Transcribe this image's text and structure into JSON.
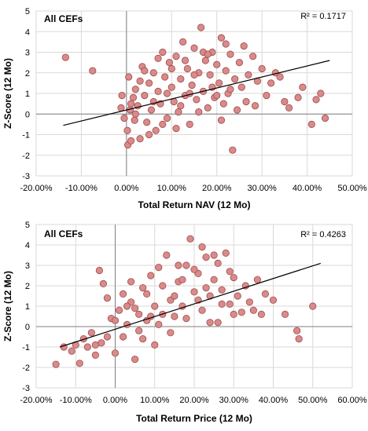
{
  "chart_data": [
    {
      "type": "scatter",
      "panel_label": "All CEFs",
      "r2_label": "R² = 0.1717",
      "xlabel": "Total Return NAV (12 Mo)",
      "ylabel": "Z-Score (12 Mo)",
      "xlim": [
        -20,
        50
      ],
      "ylim": [
        -3,
        5
      ],
      "x_ticks": [
        "-20.00%",
        "-10.00%",
        "0.00%",
        "10.00%",
        "20.00%",
        "30.00%",
        "40.00%",
        "50.00%"
      ],
      "y_ticks": [
        "-3",
        "-2",
        "-1",
        "0",
        "1",
        "2",
        "3",
        "4",
        "5"
      ],
      "grid": true,
      "marker_fill": "#d98a8a",
      "marker_edge": "#a04c4c",
      "trendline": {
        "x": [
          -14,
          45
        ],
        "y": [
          -0.55,
          2.6
        ]
      },
      "points": [
        [
          -13.5,
          2.75
        ],
        [
          -7.5,
          2.1
        ],
        [
          -1,
          0.9
        ],
        [
          -0.5,
          -0.2
        ],
        [
          -1.2,
          0.3
        ],
        [
          0.3,
          -1.5
        ],
        [
          1,
          -1.3
        ],
        [
          0.5,
          1.8
        ],
        [
          0.8,
          0.2
        ],
        [
          1.5,
          0.8
        ],
        [
          0.2,
          -0.8
        ],
        [
          1.8,
          -0.3
        ],
        [
          2,
          1.2
        ],
        [
          2.5,
          0.4
        ],
        [
          3,
          -1.2
        ],
        [
          3.5,
          2.3
        ],
        [
          4,
          0.9
        ],
        [
          4.5,
          -0.4
        ],
        [
          5,
          1.5
        ],
        [
          5.5,
          0.2
        ],
        [
          6,
          2.0
        ],
        [
          6.5,
          -0.8
        ],
        [
          7,
          1.1
        ],
        [
          7.5,
          0.5
        ],
        [
          8,
          3.0
        ],
        [
          8.5,
          1.8
        ],
        [
          9,
          -0.2
        ],
        [
          9.5,
          2.5
        ],
        [
          10,
          1.3
        ],
        [
          10.5,
          0.6
        ],
        [
          11,
          2.8
        ],
        [
          11.5,
          0.1
        ],
        [
          12,
          1.7
        ],
        [
          12.5,
          3.5
        ],
        [
          13,
          0.9
        ],
        [
          13.5,
          2.2
        ],
        [
          14,
          -0.5
        ],
        [
          14.5,
          1.4
        ],
        [
          15,
          3.2
        ],
        [
          15.5,
          0.7
        ],
        [
          16,
          2.0
        ],
        [
          16.5,
          4.2
        ],
        [
          17,
          1.1
        ],
        [
          17.5,
          2.6
        ],
        [
          18,
          0.3
        ],
        [
          18.5,
          1.9
        ],
        [
          19,
          3.0
        ],
        [
          19.5,
          0.8
        ],
        [
          20,
          2.4
        ],
        [
          20.5,
          1.5
        ],
        [
          21,
          3.7
        ],
        [
          21.5,
          0.5
        ],
        [
          22,
          2.1
        ],
        [
          22.5,
          1.0
        ],
        [
          23,
          2.9
        ],
        [
          23.5,
          -1.75
        ],
        [
          24,
          1.7
        ],
        [
          24.5,
          0.2
        ],
        [
          25,
          2.5
        ],
        [
          25.5,
          1.3
        ],
        [
          26,
          3.3
        ],
        [
          26.5,
          0.6
        ],
        [
          27,
          1.9
        ],
        [
          28,
          2.8
        ],
        [
          28.5,
          0.4
        ],
        [
          29,
          1.6
        ],
        [
          30,
          2.2
        ],
        [
          31,
          0.9
        ],
        [
          32,
          1.5
        ],
        [
          33,
          2.0
        ],
        [
          34,
          1.8
        ],
        [
          35,
          0.6
        ],
        [
          36,
          0.3
        ],
        [
          38,
          0.8
        ],
        [
          39,
          1.3
        ],
        [
          41,
          -0.5
        ],
        [
          42,
          0.7
        ],
        [
          43,
          1.0
        ],
        [
          44,
          -0.2
        ],
        [
          3,
          1.6
        ],
        [
          5,
          -1.0
        ],
        [
          7,
          2.7
        ],
        [
          9,
          1.0
        ],
        [
          11,
          -0.7
        ],
        [
          13,
          2.6
        ],
        [
          15,
          1.9
        ],
        [
          17,
          3.0
        ],
        [
          19,
          1.3
        ],
        [
          21,
          -0.3
        ],
        [
          23,
          1.2
        ],
        [
          10,
          2.2
        ],
        [
          12,
          0.4
        ],
        [
          14,
          1.0
        ],
        [
          16,
          0.1
        ],
        [
          18,
          2.9
        ],
        [
          20,
          0.9
        ],
        [
          22,
          3.4
        ],
        [
          6,
          0.6
        ],
        [
          8,
          -0.5
        ],
        [
          2,
          0.0
        ],
        [
          4,
          2.1
        ],
        [
          1,
          0.5
        ]
      ]
    },
    {
      "type": "scatter",
      "panel_label": "All CEFs",
      "r2_label": "R² = 0.4263",
      "xlabel": "Total Return Price (12 Mo)",
      "ylabel": "Z-Score (12 Mo)",
      "xlim": [
        -20,
        60
      ],
      "ylim": [
        -3,
        5
      ],
      "x_ticks": [
        "-20.00%",
        "-10.00%",
        "0.00%",
        "10.00%",
        "20.00%",
        "30.00%",
        "40.00%",
        "50.00%",
        "60.00%"
      ],
      "y_ticks": [
        "-3",
        "-2",
        "-1",
        "0",
        "1",
        "2",
        "3",
        "4",
        "5"
      ],
      "grid": true,
      "marker_fill": "#d98a8a",
      "marker_edge": "#a04c4c",
      "trendline": {
        "x": [
          -14,
          52
        ],
        "y": [
          -1.0,
          3.1
        ]
      },
      "points": [
        [
          -15,
          -1.85
        ],
        [
          -13,
          -1.0
        ],
        [
          -11,
          -1.2
        ],
        [
          -10,
          -0.9
        ],
        [
          -9,
          -1.8
        ],
        [
          -8,
          -0.6
        ],
        [
          -7,
          -1.0
        ],
        [
          -6,
          -0.3
        ],
        [
          -5,
          -1.4
        ],
        [
          -4,
          2.75
        ],
        [
          -3,
          2.1
        ],
        [
          -3.5,
          -0.8
        ],
        [
          -2,
          1.4
        ],
        [
          -1,
          0.4
        ],
        [
          0,
          -1.3
        ],
        [
          1,
          0.8
        ],
        [
          2,
          1.6
        ],
        [
          3,
          0.1
        ],
        [
          4,
          1.2
        ],
        [
          5,
          -1.6
        ],
        [
          6,
          0.6
        ],
        [
          7,
          1.9
        ],
        [
          8,
          0.3
        ],
        [
          9,
          2.5
        ],
        [
          10,
          1.0
        ],
        [
          11,
          0.1
        ],
        [
          12,
          2.0
        ],
        [
          13,
          3.5
        ],
        [
          14,
          1.3
        ],
        [
          15,
          0.5
        ],
        [
          16,
          2.2
        ],
        [
          17,
          1.0
        ],
        [
          18,
          3.0
        ],
        [
          19,
          4.3
        ],
        [
          20,
          1.7
        ],
        [
          21,
          2.6
        ],
        [
          22,
          0.8
        ],
        [
          23,
          3.4
        ],
        [
          24,
          1.5
        ],
        [
          25,
          2.3
        ],
        [
          26,
          0.2
        ],
        [
          27,
          1.8
        ],
        [
          28,
          3.6
        ],
        [
          29,
          1.1
        ],
        [
          30,
          2.4
        ],
        [
          31,
          1.5
        ],
        [
          32,
          0.7
        ],
        [
          33,
          2.0
        ],
        [
          34,
          1.2
        ],
        [
          35,
          0.8
        ],
        [
          36,
          2.3
        ],
        [
          37,
          0.6
        ],
        [
          38,
          1.6
        ],
        [
          40,
          1.3
        ],
        [
          43,
          0.6
        ],
        [
          46,
          -0.2
        ],
        [
          46.5,
          -0.6
        ],
        [
          50,
          1.0
        ],
        [
          2,
          -0.5
        ],
        [
          5,
          0.9
        ],
        [
          8,
          1.6
        ],
        [
          11,
          2.9
        ],
        [
          14,
          -0.3
        ],
        [
          17,
          2.3
        ],
        [
          20,
          2.8
        ],
        [
          23,
          1.9
        ],
        [
          26,
          3.1
        ],
        [
          29,
          2.7
        ],
        [
          12,
          0.6
        ],
        [
          15,
          1.5
        ],
        [
          18,
          0.4
        ],
        [
          21,
          1.3
        ],
        [
          24,
          0.2
        ],
        [
          27,
          1.1
        ],
        [
          30,
          0.6
        ],
        [
          -5,
          -0.9
        ],
        [
          -2,
          -0.5
        ],
        [
          0,
          0.3
        ],
        [
          3,
          1.0
        ],
        [
          6,
          -0.2
        ],
        [
          9,
          0.5
        ],
        [
          16,
          3.0
        ],
        [
          22,
          3.9
        ],
        [
          25,
          3.5
        ],
        [
          10,
          -0.9
        ],
        [
          7,
          -0.6
        ],
        [
          4,
          2.2
        ]
      ]
    }
  ]
}
